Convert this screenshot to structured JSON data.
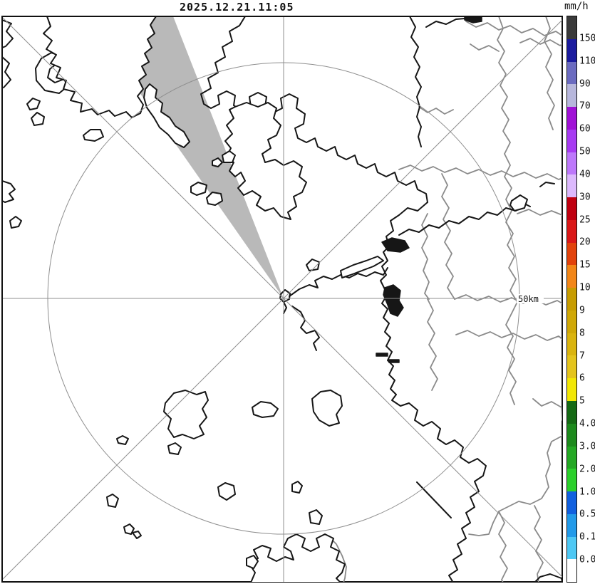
{
  "header": {
    "timestamp": "2025.12.21.11:05",
    "unit_label": "mm/h"
  },
  "map": {
    "range_ring_label": "50km"
  },
  "colorbar": {
    "unit": "mm/h",
    "segments": [
      {
        "color": "#3a3a3a",
        "label": "150"
      },
      {
        "color": "#1b1b9e",
        "label": "110"
      },
      {
        "color": "#6b6bc0",
        "label": "90"
      },
      {
        "color": "#b7b7dc",
        "label": "70"
      },
      {
        "color": "#a011d6",
        "label": "60"
      },
      {
        "color": "#a73bf2",
        "label": "50"
      },
      {
        "color": "#bd78fb",
        "label": "40"
      },
      {
        "color": "#dcb9fd",
        "label": "30"
      },
      {
        "color": "#c00010",
        "label": "25"
      },
      {
        "color": "#da1818",
        "label": "20"
      },
      {
        "color": "#e2430c",
        "label": "15"
      },
      {
        "color": "#f28618",
        "label": "10"
      },
      {
        "color": "#c79c00",
        "label": "9"
      },
      {
        "color": "#d0a806",
        "label": "8"
      },
      {
        "color": "#dab40e",
        "label": "7"
      },
      {
        "color": "#e4c41c",
        "label": "6"
      },
      {
        "color": "#f2e705",
        "label": "5"
      },
      {
        "color": "#156a15",
        "label": "4.0"
      },
      {
        "color": "#1d8a1d",
        "label": "3.0"
      },
      {
        "color": "#24a824",
        "label": "2.0"
      },
      {
        "color": "#2bd02b",
        "label": "1.0"
      },
      {
        "color": "#1160df",
        "label": "0.5"
      },
      {
        "color": "#229ae9",
        "label": "0.1"
      },
      {
        "color": "#4ec8f4",
        "label": "0.0"
      },
      {
        "color": "#ffffff",
        "label": ""
      }
    ]
  },
  "colors": {
    "wedge": "#b9b9b9",
    "coastline": "#161616",
    "admin_boundary": "#8a8a8a",
    "grid_lines": "#8f8f8f"
  }
}
